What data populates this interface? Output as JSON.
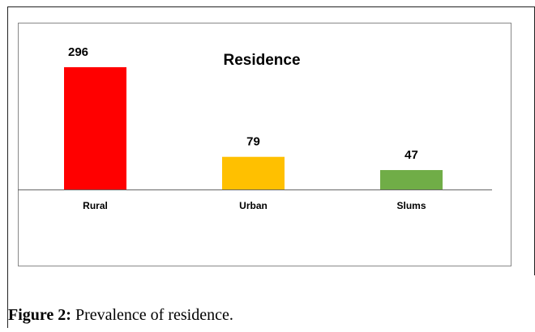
{
  "chart_data": {
    "type": "bar",
    "title": "Residence",
    "categories": [
      "Rural",
      "Urban",
      "Slums"
    ],
    "values": [
      296,
      79,
      47
    ],
    "colors": [
      "#ff0000",
      "#ffc000",
      "#70ad47"
    ]
  },
  "caption": {
    "label": "Figure 2:",
    "text": "Prevalence of residence."
  }
}
